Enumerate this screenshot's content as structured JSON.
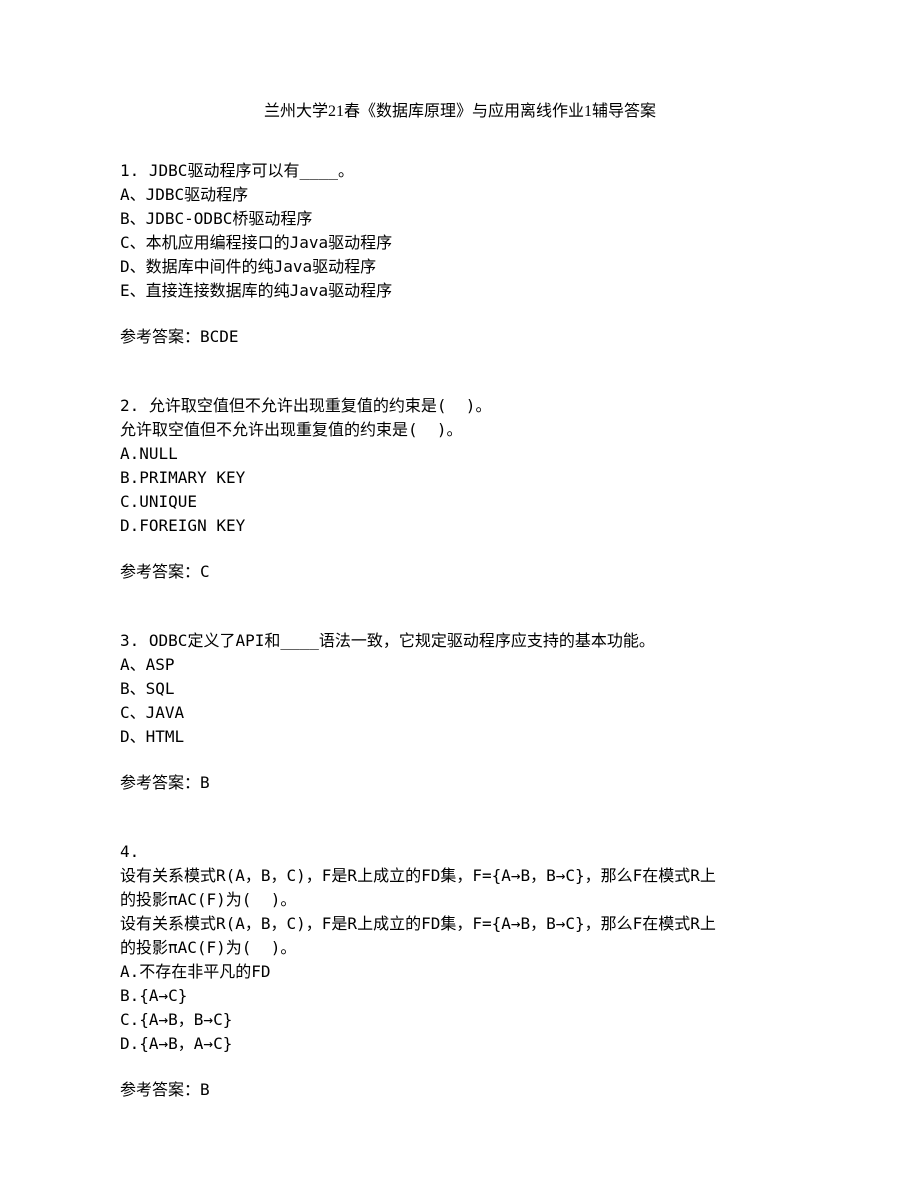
{
  "title": "兰州大学21春《数据库原理》与应用离线作业1辅导答案",
  "questions": [
    {
      "number": "1.",
      "stem": "JDBC驱动程序可以有____。",
      "options": [
        "A、JDBC驱动程序",
        "B、JDBC-ODBC桥驱动程序",
        "C、本机应用编程接口的Java驱动程序",
        "D、数据库中间件的纯Java驱动程序",
        "E、直接连接数据库的纯Java驱动程序"
      ],
      "answer_label": "参考答案：",
      "answer_value": "BCDE"
    },
    {
      "number": "2.",
      "stem": "允许取空值但不允许出现重复值的约束是(  )。",
      "repeat_stem": "允许取空值但不允许出现重复值的约束是(  )。",
      "options": [
        "A.NULL",
        "B.PRIMARY KEY",
        "C.UNIQUE",
        "D.FOREIGN KEY"
      ],
      "answer_label": "参考答案：",
      "answer_value": "C"
    },
    {
      "number": "3.",
      "stem": "ODBC定义了API和____语法一致，它规定驱动程序应支持的基本功能。",
      "options": [
        "A、ASP",
        "B、SQL",
        "C、JAVA",
        "D、HTML"
      ],
      "answer_label": "参考答案：",
      "answer_value": "B"
    },
    {
      "number": "4.",
      "stem_lines": [
        "设有关系模式R(A，B，C)，F是R上成立的FD集，F={A→B，B→C}，那么F在模式R上",
        "的投影πAC(F)为(  )。",
        "设有关系模式R(A，B，C)，F是R上成立的FD集，F={A→B，B→C}，那么F在模式R上",
        "的投影πAC(F)为(  )。"
      ],
      "options": [
        "A.不存在非平凡的FD",
        "B.{A→C}",
        "C.{A→B，B→C}",
        "D.{A→B，A→C}"
      ],
      "answer_label": "参考答案：",
      "answer_value": "B"
    }
  ]
}
